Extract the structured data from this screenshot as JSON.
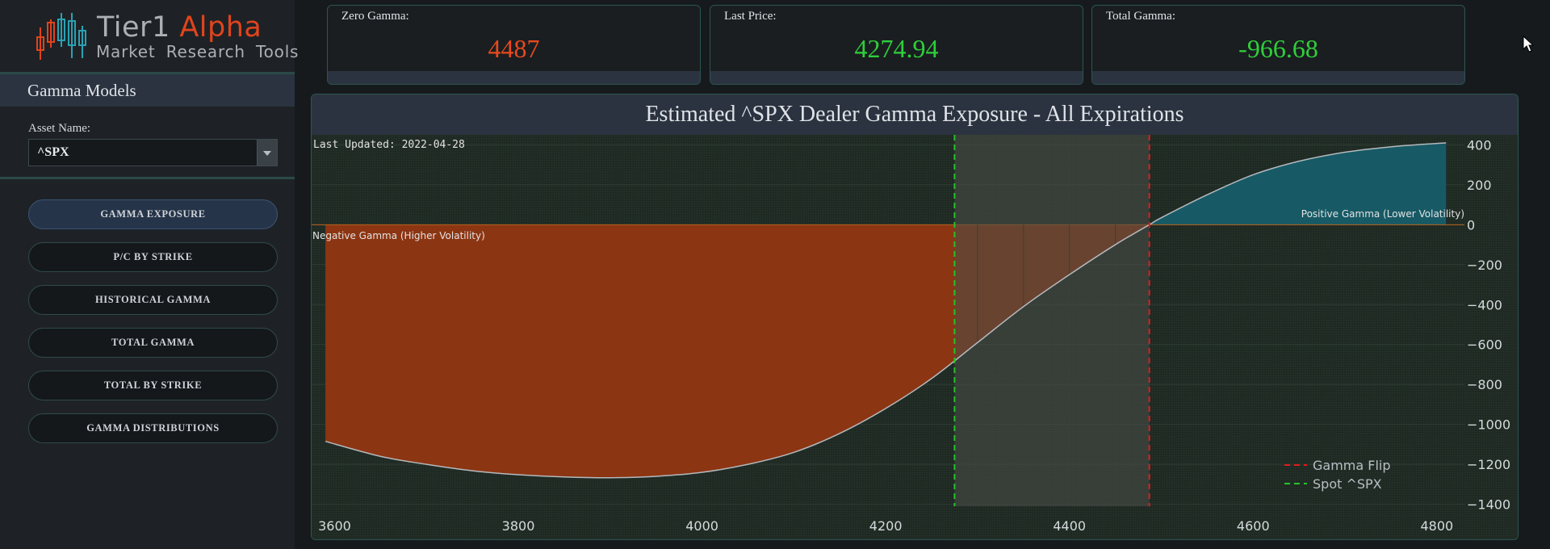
{
  "logo": {
    "brand_part1": "Tier1",
    "brand_part2": "Alpha",
    "tagline": "Market  Research Tools"
  },
  "sidebar": {
    "section_title": "Gamma Models",
    "asset_label": "Asset Name:",
    "asset_value": "^SPX",
    "nav": [
      {
        "label": "GAMMA EXPOSURE",
        "active": true
      },
      {
        "label": "P/C BY STRIKE",
        "active": false
      },
      {
        "label": "HISTORICAL GAMMA",
        "active": false
      },
      {
        "label": "TOTAL GAMMA",
        "active": false
      },
      {
        "label": "TOTAL BY STRIKE",
        "active": false
      },
      {
        "label": "GAMMA DISTRIBUTIONS",
        "active": false
      }
    ]
  },
  "cards": [
    {
      "label": "Zero Gamma:",
      "value": "4487",
      "color": "#e8491d"
    },
    {
      "label": "Last Price:",
      "value": "4274.94",
      "color": "#2fcf3a"
    },
    {
      "label": "Total Gamma:",
      "value": "-966.68",
      "color": "#2fcf3a"
    }
  ],
  "chart_data": {
    "type": "area",
    "title": "Estimated ^SPX Dealer Gamma Exposure - All Expirations",
    "last_updated": "Last Updated: 2022-04-28",
    "annotations": {
      "positive": "Positive Gamma (Lower Volatility)",
      "negative": "Negative Gamma (Higher Volatility)"
    },
    "x": [
      3590,
      3650,
      3700,
      3750,
      3800,
      3850,
      3900,
      3950,
      4000,
      4050,
      4100,
      4150,
      4200,
      4250,
      4300,
      4350,
      4400,
      4450,
      4487,
      4500,
      4550,
      4600,
      4650,
      4700,
      4750,
      4800,
      4810
    ],
    "y": [
      -1085,
      -1160,
      -1200,
      -1232,
      -1252,
      -1263,
      -1267,
      -1260,
      -1240,
      -1200,
      -1140,
      -1045,
      -920,
      -770,
      -590,
      -410,
      -250,
      -100,
      0,
      35,
      150,
      250,
      318,
      363,
      390,
      407,
      410
    ],
    "xlim": [
      3575,
      4830
    ],
    "ylim": [
      -1450,
      450
    ],
    "x_ticks": [
      3600,
      3800,
      4000,
      4200,
      4400,
      4600,
      4800
    ],
    "y_ticks": [
      400,
      200,
      0,
      -200,
      -400,
      -600,
      -800,
      -1000,
      -1200,
      -1400
    ],
    "y_tick_labels": [
      "400",
      "200",
      "0",
      "−200",
      "−400",
      "−600",
      "−800",
      "−1000",
      "−1200",
      "−1400"
    ],
    "gamma_flip": 4487,
    "spot": 4274.94,
    "shaded_region": [
      4274.94,
      4487
    ],
    "legend": [
      "Gamma Flip",
      "Spot ^SPX"
    ],
    "legend_position": "bottom-right",
    "grid": true,
    "colors": {
      "negative_fill": "#8c3512",
      "positive_fill": "#175a66",
      "curve": "#b5b9bd",
      "gamma_flip": "#e21b1b",
      "spot": "#27c127",
      "shade": "#4a4f49"
    }
  }
}
